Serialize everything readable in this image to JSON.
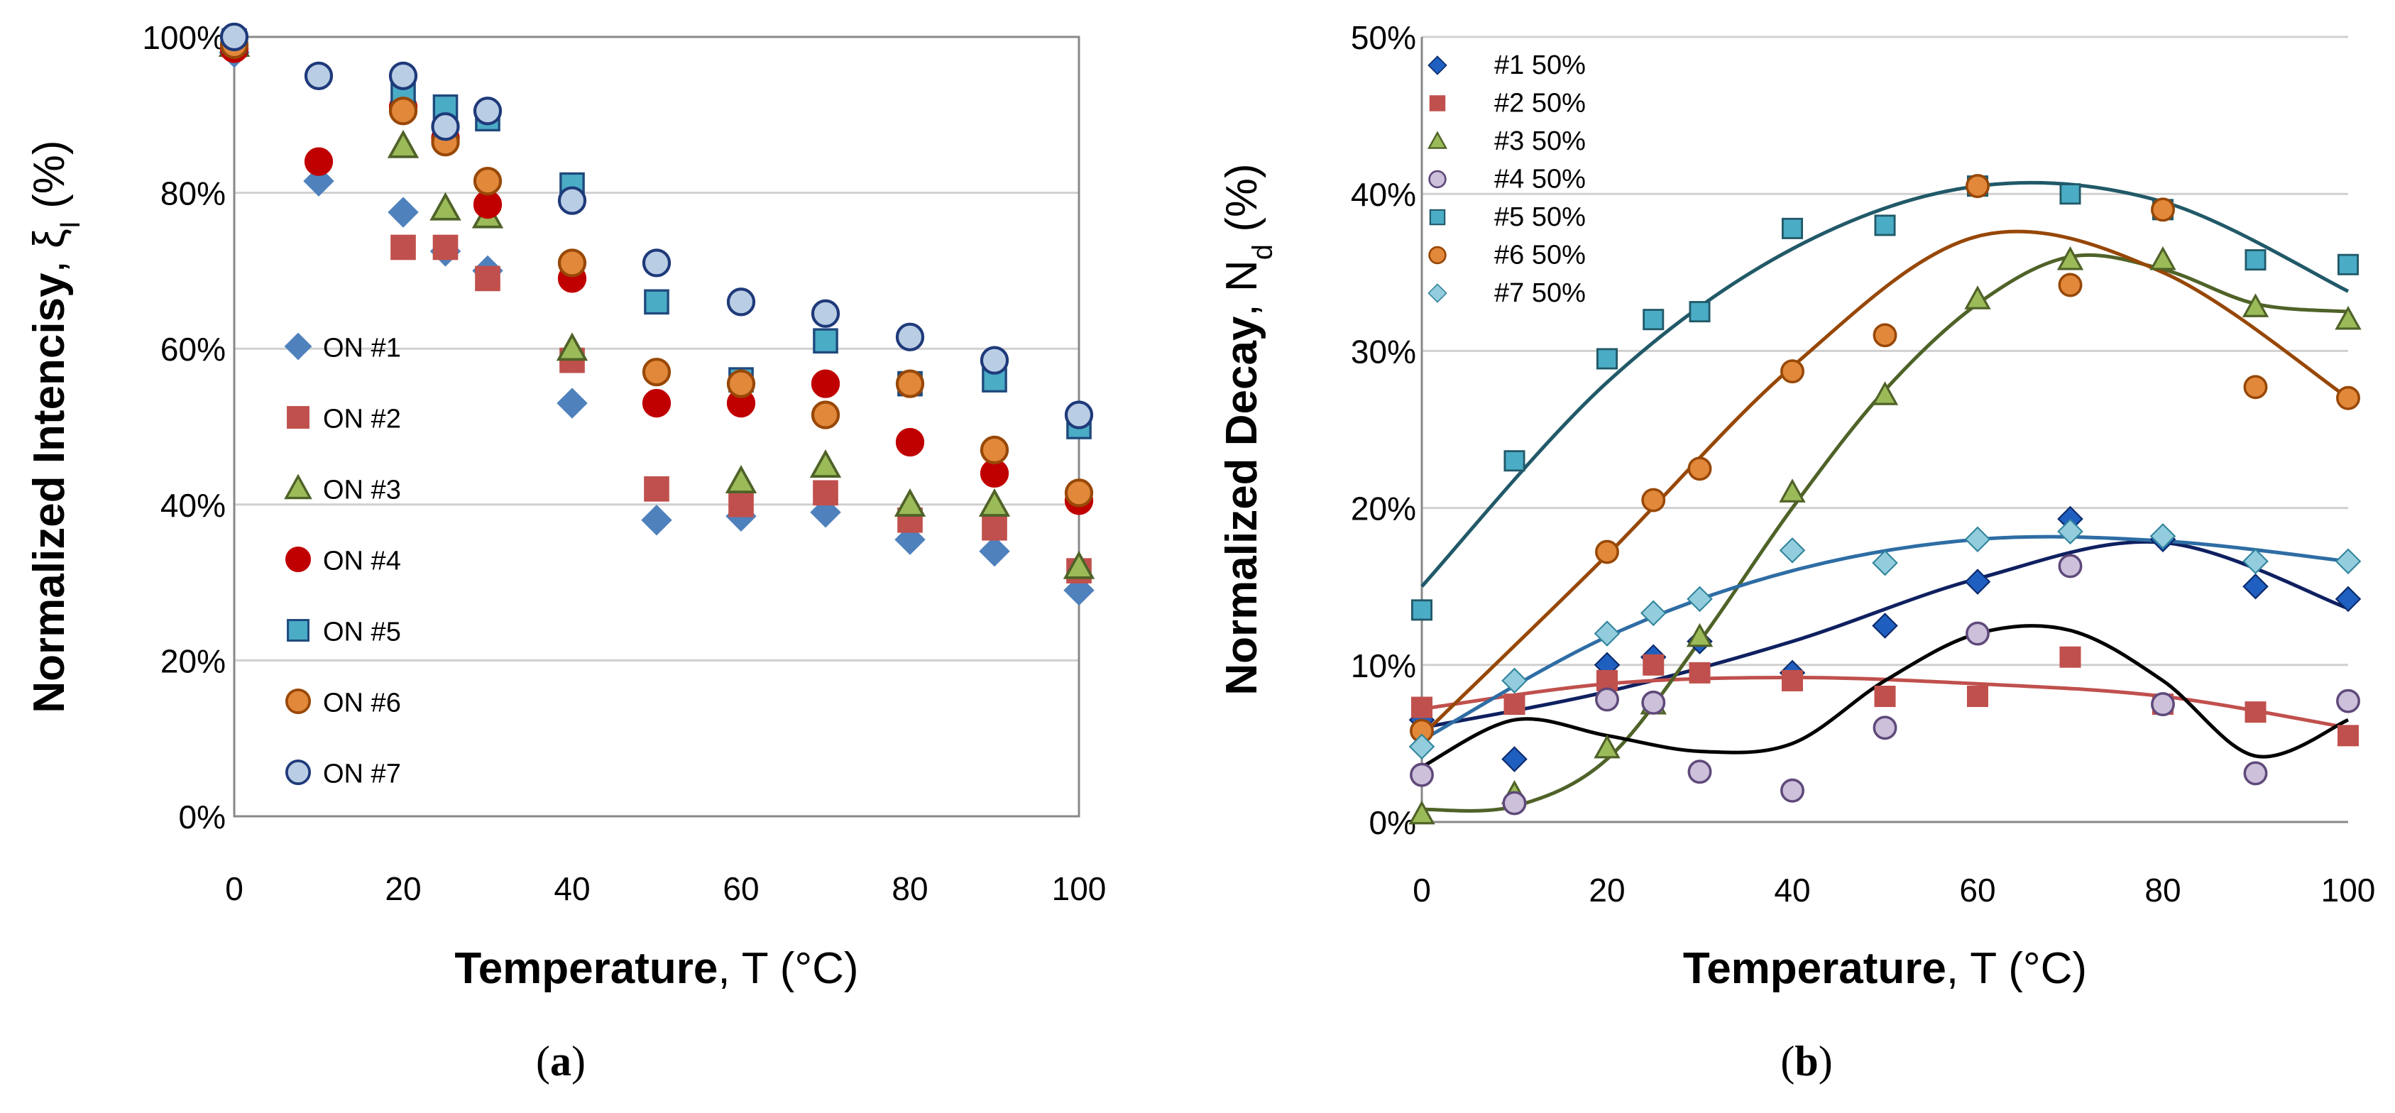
{
  "chart_data": [
    {
      "type": "scatter",
      "caption": {
        "open": "(",
        "letter": "a",
        "close": ")"
      },
      "xlabel": {
        "bold": "Temperature",
        "rest": ", T (°C)"
      },
      "ylabel": {
        "bold": "Normalized Intencisy",
        "rest": ", ξ",
        "sub": "I",
        "tail": " (%)"
      },
      "xlim": [
        0,
        100
      ],
      "ylim": [
        0,
        100
      ],
      "xticks": [
        "0",
        "20",
        "40",
        "60",
        "80",
        "100"
      ],
      "xtick_values": [
        0,
        20,
        40,
        60,
        80,
        100
      ],
      "yticks": [
        "0%",
        "20%",
        "40%",
        "60%",
        "80%",
        "100%"
      ],
      "ytick_values": [
        0,
        20,
        40,
        60,
        80,
        100
      ],
      "grid": "horizontal",
      "legend_position": "left-center",
      "series": [
        {
          "name": "ON #1",
          "marker": "diamond",
          "color": "#4f81bd",
          "stroke": "#4f81bd",
          "points": [
            [
              0,
              98
            ],
            [
              10,
              81.5
            ],
            [
              20,
              77.5
            ],
            [
              25,
              72.5
            ],
            [
              30,
              70
            ],
            [
              40,
              53
            ],
            [
              50,
              38
            ],
            [
              60,
              38.5
            ],
            [
              70,
              39
            ],
            [
              80,
              35.5
            ],
            [
              90,
              34
            ],
            [
              100,
              29
            ]
          ]
        },
        {
          "name": "ON #2",
          "marker": "square",
          "color": "#c0504d",
          "stroke": "#c0504d",
          "points": [
            [
              0,
              99
            ],
            [
              20,
              73
            ],
            [
              25,
              73
            ],
            [
              30,
              69
            ],
            [
              40,
              58.5
            ],
            [
              50,
              42
            ],
            [
              60,
              40
            ],
            [
              70,
              41.5
            ],
            [
              80,
              38
            ],
            [
              90,
              37
            ],
            [
              100,
              31.5
            ]
          ]
        },
        {
          "name": "ON #3",
          "marker": "triangle",
          "color": "#9bbb59",
          "stroke": "#4f6228",
          "points": [
            [
              0,
              99
            ],
            [
              20,
              86
            ],
            [
              25,
              78
            ],
            [
              30,
              77
            ],
            [
              40,
              60
            ],
            [
              60,
              43
            ],
            [
              70,
              45
            ],
            [
              80,
              40
            ],
            [
              90,
              40
            ],
            [
              100,
              32
            ]
          ]
        },
        {
          "name": "ON #4",
          "marker": "circle",
          "color": "#c00000",
          "stroke": "#c00000",
          "points": [
            [
              0,
              98.5
            ],
            [
              10,
              84
            ],
            [
              20,
              91
            ],
            [
              25,
              87
            ],
            [
              30,
              78.5
            ],
            [
              40,
              69
            ],
            [
              50,
              53
            ],
            [
              60,
              53
            ],
            [
              70,
              55.5
            ],
            [
              80,
              48
            ],
            [
              90,
              44
            ],
            [
              100,
              40.5
            ]
          ]
        },
        {
          "name": "ON #5",
          "marker": "square",
          "color": "#4bacc6",
          "stroke": "#1f497d",
          "points": [
            [
              0,
              99.5
            ],
            [
              20,
              92.5
            ],
            [
              25,
              91
            ],
            [
              30,
              89.5
            ],
            [
              40,
              81
            ],
            [
              50,
              66
            ],
            [
              60,
              56
            ],
            [
              70,
              61
            ],
            [
              80,
              55.5
            ],
            [
              90,
              56
            ],
            [
              100,
              50
            ]
          ]
        },
        {
          "name": "ON #6",
          "marker": "circle",
          "color": "#e2883a",
          "stroke": "#984807",
          "points": [
            [
              0,
              99
            ],
            [
              20,
              90.5
            ],
            [
              25,
              86.5
            ],
            [
              30,
              81.5
            ],
            [
              40,
              71
            ],
            [
              50,
              57
            ],
            [
              60,
              55.5
            ],
            [
              70,
              51.5
            ],
            [
              80,
              55.5
            ],
            [
              90,
              47
            ],
            [
              100,
              41.5
            ]
          ]
        },
        {
          "name": "ON #7",
          "marker": "circle",
          "color": "#b9cde5",
          "stroke": "#1f3a7a",
          "points": [
            [
              0,
              100
            ],
            [
              10,
              95
            ],
            [
              20,
              95
            ],
            [
              25,
              88.5
            ],
            [
              30,
              90.5
            ],
            [
              40,
              79
            ],
            [
              50,
              71
            ],
            [
              60,
              66
            ],
            [
              70,
              64.5
            ],
            [
              80,
              61.5
            ],
            [
              90,
              58.5
            ],
            [
              100,
              51.5
            ]
          ]
        }
      ]
    },
    {
      "type": "scatter",
      "caption": {
        "open": "(",
        "letter": "b",
        "close": ")"
      },
      "xlabel": {
        "bold": "Temperature",
        "rest": ", T (°C)"
      },
      "ylabel": {
        "bold": "Normalized Decay",
        "rest": ", N",
        "sub": "d",
        "tail": " (%)"
      },
      "xlim": [
        0,
        100
      ],
      "ylim": [
        0,
        50
      ],
      "xticks": [
        "0",
        "20",
        "40",
        "60",
        "80",
        "100"
      ],
      "xtick_values": [
        0,
        20,
        40,
        60,
        80,
        100
      ],
      "yticks": [
        "0%",
        "10%",
        "20%",
        "30%",
        "40%",
        "50%"
      ],
      "ytick_values": [
        0,
        10,
        20,
        30,
        40,
        50
      ],
      "grid": "horizontal",
      "legend_position": "top-left",
      "series": [
        {
          "name": "#1 50%",
          "marker": "diamond",
          "color": "#1f5fbf",
          "stroke": "#0b2a6b",
          "trend": "#0f2060",
          "points": [
            [
              0,
              6.5
            ],
            [
              10,
              4
            ],
            [
              20,
              10
            ],
            [
              25,
              10.5
            ],
            [
              30,
              11.5
            ],
            [
              40,
              9.5
            ],
            [
              50,
              12.5
            ],
            [
              60,
              15.3
            ],
            [
              70,
              19.3
            ],
            [
              80,
              18
            ],
            [
              90,
              15
            ],
            [
              100,
              14.2
            ]
          ],
          "fit": [
            [
              0,
              6
            ],
            [
              20,
              8.3
            ],
            [
              40,
              11.5
            ],
            [
              60,
              15.5
            ],
            [
              80,
              17.8
            ],
            [
              100,
              13.6
            ]
          ]
        },
        {
          "name": "#2 50%",
          "marker": "square",
          "color": "#c0504d",
          "stroke": "#c0504d",
          "trend": "#c0504d",
          "points": [
            [
              0,
              7.3
            ],
            [
              10,
              7.5
            ],
            [
              20,
              9
            ],
            [
              25,
              10
            ],
            [
              30,
              9.5
            ],
            [
              40,
              9
            ],
            [
              50,
              8
            ],
            [
              60,
              8
            ],
            [
              70,
              10.5
            ],
            [
              80,
              7.5
            ],
            [
              90,
              7
            ],
            [
              100,
              5.5
            ]
          ],
          "fit": [
            [
              0,
              7.2
            ],
            [
              20,
              8.8
            ],
            [
              40,
              9.2
            ],
            [
              60,
              8.8
            ],
            [
              80,
              8
            ],
            [
              100,
              6
            ]
          ]
        },
        {
          "name": "#3 50%",
          "marker": "triangle",
          "color": "#9bbb59",
          "stroke": "#4f6228",
          "trend": "#4f6228",
          "points": [
            [
              0,
              0.5
            ],
            [
              10,
              1.8
            ],
            [
              20,
              4.7
            ],
            [
              25,
              7.5
            ],
            [
              30,
              11.8
            ],
            [
              40,
              21
            ],
            [
              50,
              27.2
            ],
            [
              60,
              33.3
            ],
            [
              70,
              35.8
            ],
            [
              80,
              35.8
            ],
            [
              90,
              32.8
            ],
            [
              100,
              32
            ]
          ],
          "fit": [
            [
              0,
              0.8
            ],
            [
              10,
              1
            ],
            [
              20,
              4
            ],
            [
              30,
              11.5
            ],
            [
              40,
              20
            ],
            [
              50,
              27.5
            ],
            [
              60,
              33
            ],
            [
              70,
              36
            ],
            [
              80,
              35.2
            ],
            [
              90,
              33
            ],
            [
              100,
              32.5
            ]
          ]
        },
        {
          "name": "#4 50%",
          "marker": "circle",
          "color": "#ccc0da",
          "stroke": "#5f497a",
          "trend": "#000000",
          "points": [
            [
              0,
              3
            ],
            [
              10,
              1.2
            ],
            [
              20,
              7.8
            ],
            [
              25,
              7.6
            ],
            [
              30,
              3.2
            ],
            [
              40,
              2
            ],
            [
              50,
              6
            ],
            [
              60,
              12
            ],
            [
              70,
              16.3
            ],
            [
              80,
              7.5
            ],
            [
              90,
              3.1
            ],
            [
              100,
              7.7
            ]
          ],
          "fit": [
            [
              0,
              3.5
            ],
            [
              10,
              6.5
            ],
            [
              20,
              5.5
            ],
            [
              30,
              4.5
            ],
            [
              40,
              5
            ],
            [
              50,
              9
            ],
            [
              60,
              12
            ],
            [
              70,
              12.2
            ],
            [
              80,
              9
            ],
            [
              90,
              4.2
            ],
            [
              100,
              6.5
            ]
          ]
        },
        {
          "name": "#5 50%",
          "marker": "square",
          "color": "#4bacc6",
          "stroke": "#215968",
          "trend": "#215968",
          "points": [
            [
              0,
              13.5
            ],
            [
              10,
              23
            ],
            [
              20,
              29.5
            ],
            [
              25,
              32
            ],
            [
              30,
              32.5
            ],
            [
              40,
              37.8
            ],
            [
              50,
              38
            ],
            [
              60,
              40.5
            ],
            [
              70,
              40
            ],
            [
              80,
              39
            ],
            [
              90,
              35.8
            ],
            [
              100,
              35.5
            ]
          ],
          "fit": [
            [
              0,
              15
            ],
            [
              20,
              28
            ],
            [
              40,
              36.5
            ],
            [
              60,
              40.5
            ],
            [
              80,
              39.5
            ],
            [
              100,
              33.8
            ]
          ]
        },
        {
          "name": "#6 50%",
          "marker": "circle",
          "color": "#e2883a",
          "stroke": "#974706",
          "trend": "#974706",
          "points": [
            [
              0,
              5.8
            ],
            [
              20,
              17.2
            ],
            [
              25,
              20.5
            ],
            [
              30,
              22.5
            ],
            [
              40,
              28.7
            ],
            [
              50,
              31
            ],
            [
              60,
              40.5
            ],
            [
              70,
              34.2
            ],
            [
              80,
              39
            ],
            [
              90,
              27.7
            ],
            [
              100,
              27
            ]
          ],
          "fit": [
            [
              0,
              5.5
            ],
            [
              20,
              17
            ],
            [
              40,
              29
            ],
            [
              60,
              37.3
            ],
            [
              80,
              35
            ],
            [
              100,
              27
            ]
          ]
        },
        {
          "name": "#7 50%",
          "marker": "diamond",
          "color": "#93cddd",
          "stroke": "#31859c",
          "trend": "#2e6da4",
          "points": [
            [
              0,
              4.8
            ],
            [
              10,
              9
            ],
            [
              20,
              12
            ],
            [
              25,
              13.3
            ],
            [
              30,
              14.2
            ],
            [
              40,
              17.3
            ],
            [
              50,
              16.5
            ],
            [
              60,
              18
            ],
            [
              70,
              18.5
            ],
            [
              80,
              18.2
            ],
            [
              90,
              16.6
            ],
            [
              100,
              16.6
            ]
          ],
          "fit": [
            [
              0,
              5.2
            ],
            [
              20,
              11.8
            ],
            [
              40,
              16
            ],
            [
              60,
              18
            ],
            [
              80,
              17.9
            ],
            [
              100,
              16.6
            ]
          ]
        }
      ]
    }
  ]
}
